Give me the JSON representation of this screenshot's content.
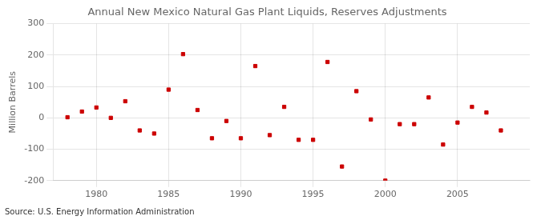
{
  "chart_data": {
    "type": "scatter",
    "title": "Annual New Mexico Natural Gas Plant Liquids, Reserves Adjustments",
    "y_label": "Million Barrels",
    "annotations": [
      "Source: U.S. Energy Information Administration"
    ],
    "x": [
      1978,
      1979,
      1980,
      1981,
      1982,
      1983,
      1984,
      1985,
      1986,
      1987,
      1988,
      1989,
      1990,
      1991,
      1992,
      1993,
      1994,
      1995,
      1996,
      1997,
      1998,
      1999,
      2000,
      2001,
      2002,
      2003,
      2004,
      2005,
      2006,
      2007,
      2008
    ],
    "values": [
      2,
      20,
      33,
      0,
      53,
      -40,
      -50,
      90,
      203,
      25,
      -65,
      -10,
      -65,
      165,
      -55,
      35,
      -70,
      -70,
      178,
      -155,
      85,
      -5,
      -200,
      -20,
      -20,
      65,
      -85,
      -15,
      35,
      17,
      -40
    ],
    "color": "#cc0000",
    "marker": "square",
    "xlim": [
      1977,
      2010
    ],
    "xticks": [
      1980,
      1985,
      1990,
      1995,
      2000,
      2005
    ],
    "ylim": [
      -200,
      300
    ],
    "yticks": [
      -200,
      -100,
      0,
      100,
      200,
      300
    ],
    "grid": true
  }
}
